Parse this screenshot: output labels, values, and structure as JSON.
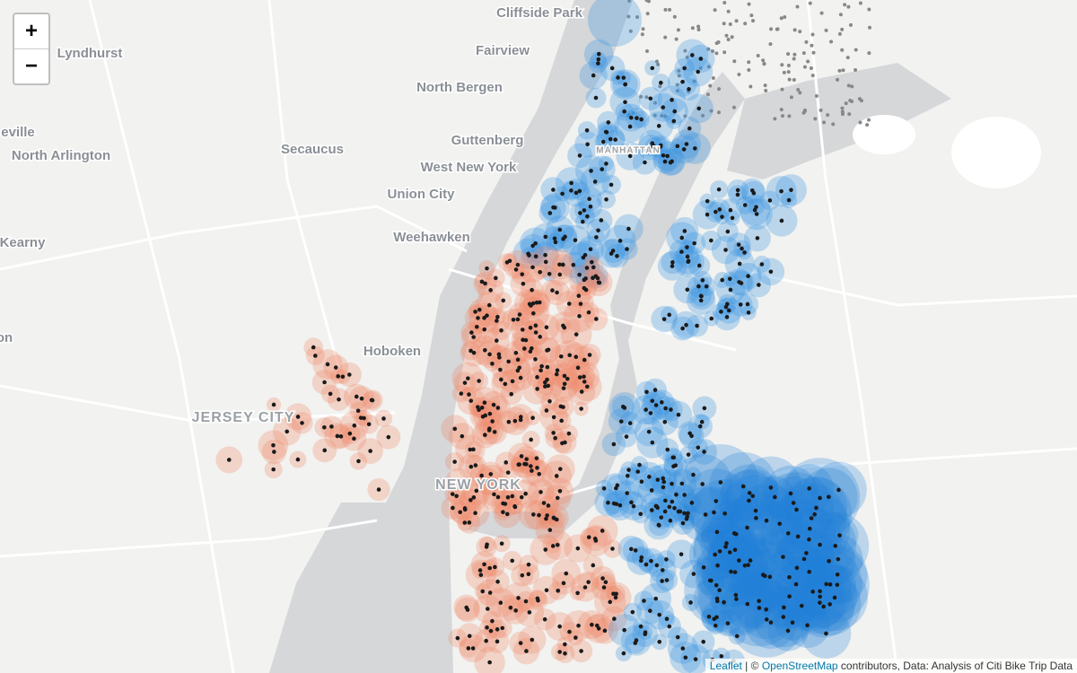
{
  "map": {
    "labels": [
      "Cliffside Park",
      "Lyndhurst",
      "Fairview",
      "North Bergen",
      "eville",
      "North Arlington",
      "Secaucus",
      "Guttenberg",
      "West New York",
      "MANHATTAN",
      "Union City",
      "Kearny",
      "Weehawken",
      "on",
      "Hoboken",
      "JERSEY CITY",
      "NEW YORK"
    ],
    "zoom": {
      "in": "+",
      "out": "−"
    },
    "attribution": {
      "leaflet": "Leaflet",
      "separator": "|",
      "copyright": "©",
      "osm": "OpenStreetMap",
      "rest": "contributors, Data: Analysis of Citi Bike Trip Data"
    }
  }
}
